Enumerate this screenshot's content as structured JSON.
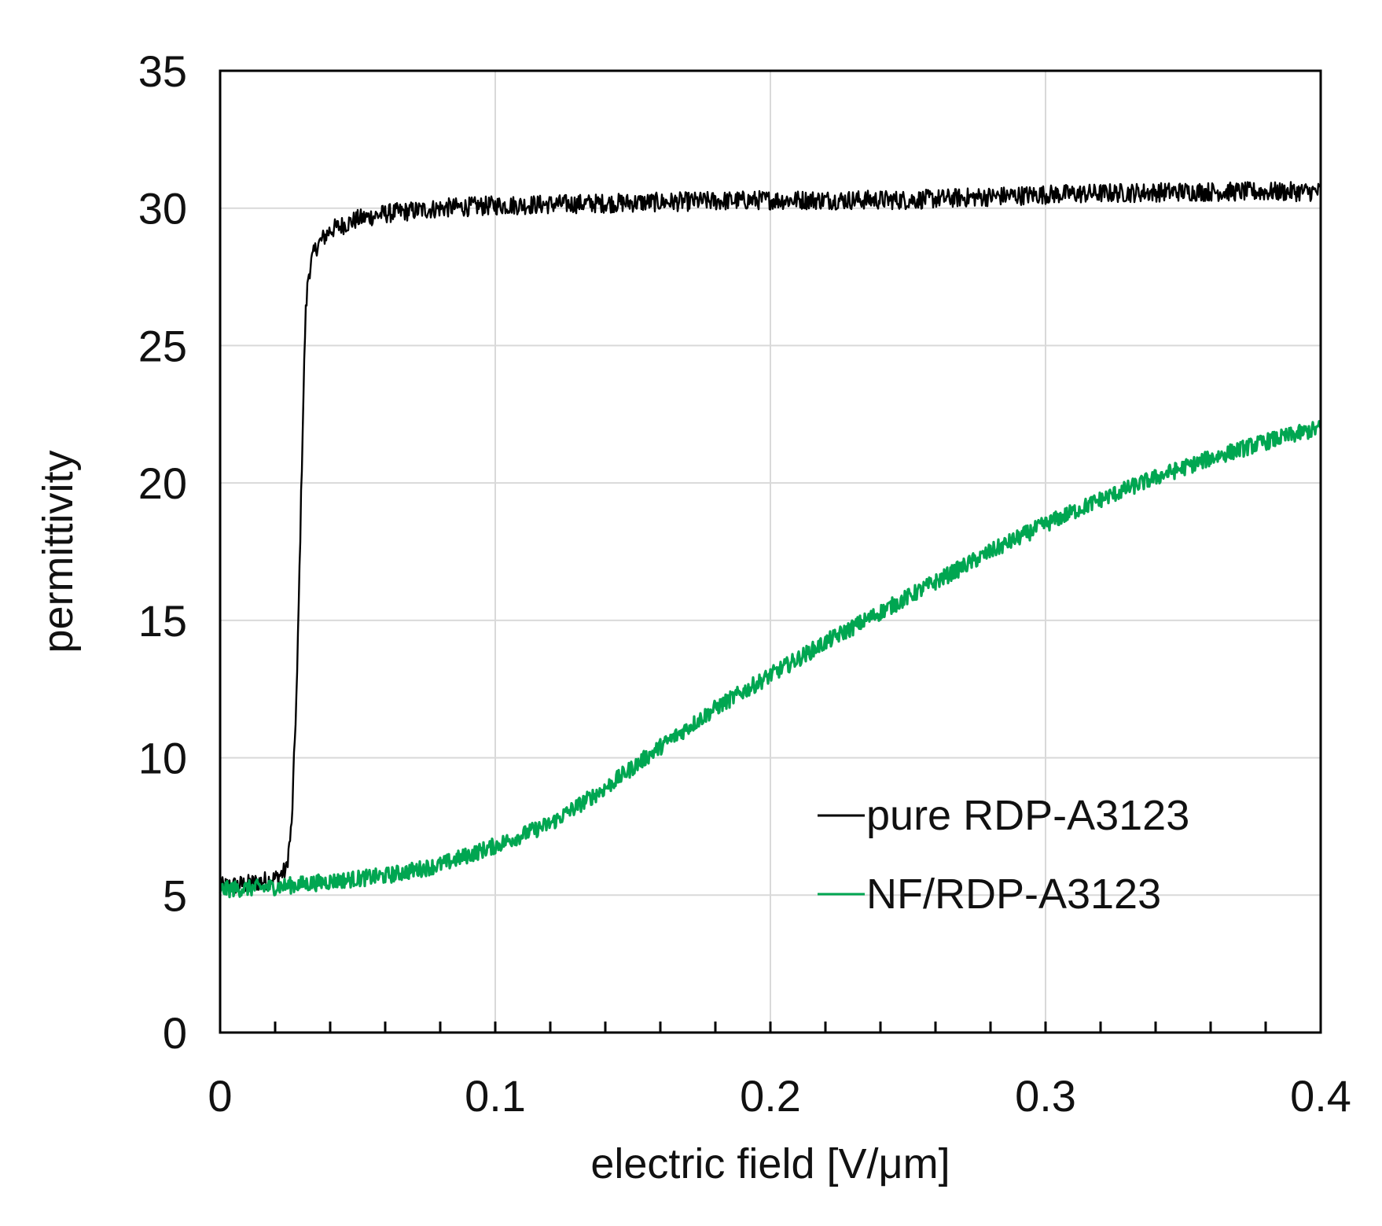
{
  "chart_data": {
    "type": "line",
    "title": "",
    "xlabel": "electric field [V/μm]",
    "ylabel": "permittivity",
    "xlim": [
      0,
      0.4
    ],
    "ylim": [
      0,
      35
    ],
    "x_ticks": [
      0,
      0.1,
      0.2,
      0.3,
      0.4
    ],
    "x_tick_labels": [
      "0",
      "0.1",
      "0.2",
      "0.3",
      "0.4"
    ],
    "x_minor_step": 0.02,
    "y_ticks": [
      0,
      5,
      10,
      15,
      20,
      25,
      30,
      35
    ],
    "y_tick_labels": [
      "0",
      "5",
      "10",
      "15",
      "20",
      "25",
      "30",
      "35"
    ],
    "grid": true,
    "legend_position": "bottom-right",
    "series": [
      {
        "name": "pure RDP-A3123",
        "color": "#000000",
        "noise": 0.35,
        "x": [
          0,
          0.01,
          0.02,
          0.024,
          0.026,
          0.028,
          0.03,
          0.031,
          0.032,
          0.033,
          0.035,
          0.04,
          0.05,
          0.06,
          0.08,
          0.1,
          0.15,
          0.2,
          0.25,
          0.3,
          0.35,
          0.4
        ],
        "y": [
          5.3,
          5.4,
          5.6,
          5.9,
          7.5,
          13.0,
          22.0,
          26.0,
          27.5,
          28.0,
          28.6,
          29.2,
          29.6,
          29.8,
          30.0,
          30.1,
          30.2,
          30.3,
          30.3,
          30.5,
          30.6,
          30.6
        ]
      },
      {
        "name": "NF/RDP-A3123",
        "color": "#00a651",
        "noise": 0.3,
        "x": [
          0,
          0.02,
          0.04,
          0.06,
          0.08,
          0.1,
          0.12,
          0.14,
          0.16,
          0.18,
          0.2,
          0.22,
          0.24,
          0.26,
          0.28,
          0.3,
          0.32,
          0.34,
          0.36,
          0.38,
          0.4
        ],
        "y": [
          5.2,
          5.3,
          5.5,
          5.7,
          6.1,
          6.8,
          7.6,
          8.9,
          10.4,
          11.8,
          13.0,
          14.2,
          15.3,
          16.4,
          17.5,
          18.5,
          19.4,
          20.2,
          20.9,
          21.5,
          22.0
        ]
      }
    ]
  }
}
